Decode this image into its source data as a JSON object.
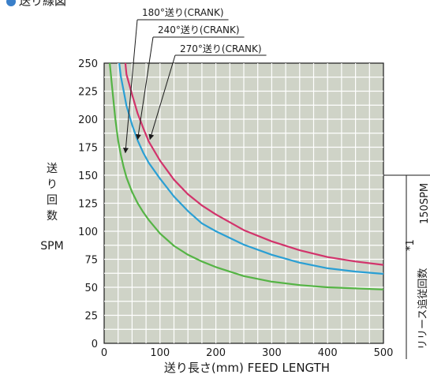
{
  "header": {
    "title": "送り線図"
  },
  "chart_data": {
    "type": "line",
    "title": "送り線図",
    "xlabel": "送り長さ(mm) FEED LENGTH",
    "ylabel_chars": [
      "送",
      "り",
      "回",
      "数"
    ],
    "ylabel_unit": "SPM",
    "xlim": [
      0,
      500
    ],
    "ylim": [
      0,
      250
    ],
    "xticks": [
      0,
      100,
      200,
      300,
      400,
      500
    ],
    "yticks": [
      0,
      25,
      50,
      75,
      100,
      125,
      150,
      175,
      200,
      225,
      250
    ],
    "grid": true,
    "series": [
      {
        "name": "180°送り(CRANK)",
        "color": "#d2336b",
        "points": [
          [
            38,
            250
          ],
          [
            40,
            240
          ],
          [
            50,
            222
          ],
          [
            60,
            205
          ],
          [
            70,
            192
          ],
          [
            80,
            180
          ],
          [
            100,
            163
          ],
          [
            125,
            146
          ],
          [
            150,
            133
          ],
          [
            175,
            123
          ],
          [
            200,
            115
          ],
          [
            250,
            101
          ],
          [
            300,
            91
          ],
          [
            350,
            83
          ],
          [
            400,
            77
          ],
          [
            450,
            73
          ],
          [
            500,
            70
          ]
        ]
      },
      {
        "name": "240°送り(CRANK)",
        "color": "#2a9fd4",
        "points": [
          [
            27,
            250
          ],
          [
            30,
            238
          ],
          [
            35,
            225
          ],
          [
            40,
            212
          ],
          [
            50,
            195
          ],
          [
            60,
            181
          ],
          [
            70,
            170
          ],
          [
            80,
            161
          ],
          [
            100,
            147
          ],
          [
            125,
            131
          ],
          [
            150,
            118
          ],
          [
            175,
            107
          ],
          [
            200,
            100
          ],
          [
            250,
            88
          ],
          [
            300,
            79
          ],
          [
            350,
            72
          ],
          [
            400,
            67
          ],
          [
            450,
            64
          ],
          [
            500,
            62
          ]
        ]
      },
      {
        "name": "270°送り(CRANK)",
        "color": "#55b445",
        "points": [
          [
            10,
            250
          ],
          [
            15,
            225
          ],
          [
            20,
            200
          ],
          [
            25,
            181
          ],
          [
            30,
            168
          ],
          [
            35,
            157
          ],
          [
            40,
            148
          ],
          [
            50,
            135
          ],
          [
            60,
            125
          ],
          [
            70,
            117
          ],
          [
            80,
            110
          ],
          [
            100,
            98
          ],
          [
            125,
            87
          ],
          [
            150,
            79
          ],
          [
            175,
            73
          ],
          [
            200,
            68
          ],
          [
            250,
            60
          ],
          [
            300,
            55
          ],
          [
            350,
            52
          ],
          [
            400,
            50
          ],
          [
            450,
            49
          ],
          [
            500,
            48
          ]
        ]
      }
    ],
    "side_note": {
      "value_label": "150SPM",
      "value": 150,
      "mark": "*1",
      "caption": "リリース追従回数"
    }
  }
}
